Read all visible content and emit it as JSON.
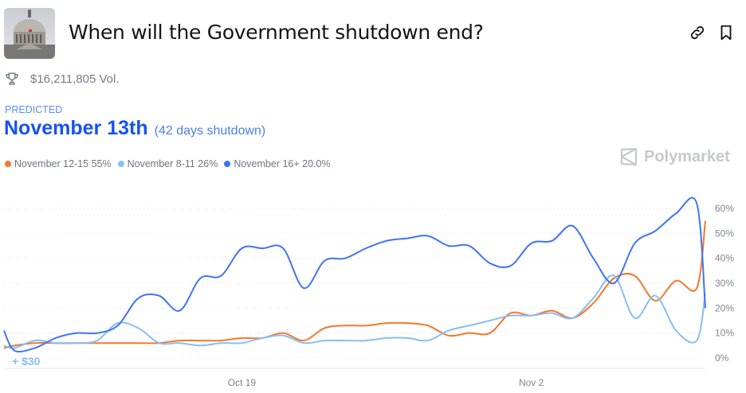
{
  "header": {
    "title": "When will the Government shutdown end?",
    "icons": [
      "link-icon",
      "bookmark-icon"
    ]
  },
  "volume": {
    "icon": "trophy-icon",
    "text": "$16,211,805 Vol."
  },
  "prediction": {
    "label": "PREDICTED",
    "value": "November 13th",
    "detail": "(42 days shutdown)"
  },
  "brand": "Polymarket",
  "annotation": "+ $30",
  "chart_data": {
    "type": "line",
    "x_ticks": [
      "Oct 19",
      "Nov 2"
    ],
    "y_ticks": [
      "0%",
      "10%",
      "20%",
      "30%",
      "40%",
      "50%",
      "60%"
    ],
    "ylim": [
      0,
      65
    ],
    "xlim": [
      "2025-10-07T12:00",
      "2025-11-10T10:00"
    ],
    "grid": "horizontal dotted",
    "legend_position": "top-left",
    "x": [
      "2025-10-07T12:00",
      "2025-10-08",
      "2025-10-09",
      "2025-10-10",
      "2025-10-11",
      "2025-10-12",
      "2025-10-13",
      "2025-10-14",
      "2025-10-15",
      "2025-10-16",
      "2025-10-17",
      "2025-10-18",
      "2025-10-19",
      "2025-10-20",
      "2025-10-21",
      "2025-10-22",
      "2025-10-23",
      "2025-10-24",
      "2025-10-25",
      "2025-10-26",
      "2025-10-27",
      "2025-10-28",
      "2025-10-29",
      "2025-10-30",
      "2025-10-31",
      "2025-11-01",
      "2025-11-02",
      "2025-11-03",
      "2025-11-04",
      "2025-11-05",
      "2025-11-06",
      "2025-11-07",
      "2025-11-08",
      "2025-11-09",
      "2025-11-10",
      "2025-11-10T10:00"
    ],
    "series": [
      {
        "name": "November 12-15",
        "legend": "November 12-15 55%",
        "color": "#f7762b",
        "values": [
          4,
          5,
          6,
          6,
          6,
          6,
          6,
          6,
          6,
          7,
          7,
          7,
          8,
          8,
          10,
          7,
          12,
          13,
          13,
          14,
          14,
          13,
          9,
          10,
          10,
          18,
          17,
          19,
          16,
          22,
          32,
          33,
          23,
          31,
          28,
          55
        ]
      },
      {
        "name": "November 8-11",
        "legend": "November 8-11 26%",
        "color": "#86bef8",
        "values": [
          5,
          4,
          7,
          6,
          6,
          7,
          14,
          12,
          6,
          6,
          5,
          6,
          6,
          8,
          9,
          6,
          7,
          7,
          7,
          8,
          8,
          7,
          11,
          13,
          15,
          17,
          17,
          18,
          16,
          24,
          33,
          16,
          25,
          11,
          7,
          26
        ]
      },
      {
        "name": "November 16+",
        "legend": "November 16+ 20.0%",
        "color": "#3d74f5",
        "values": [
          11,
          3,
          4,
          8,
          10,
          10,
          13,
          24,
          25,
          19,
          32,
          33,
          44,
          44,
          44,
          28,
          39,
          40,
          44,
          47,
          48,
          49,
          45,
          45,
          38,
          37,
          46,
          47,
          53,
          40,
          30,
          46,
          51,
          58,
          62,
          20
        ]
      }
    ]
  }
}
